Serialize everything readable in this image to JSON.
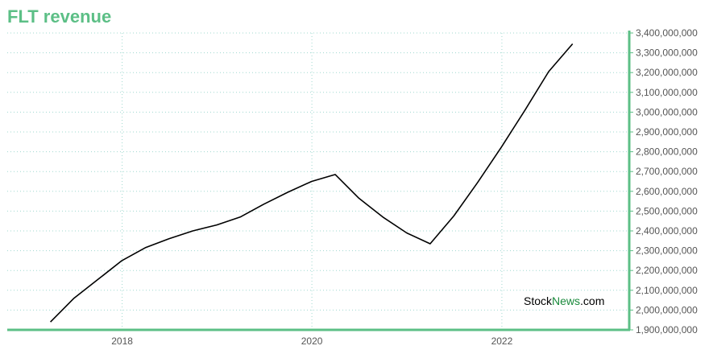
{
  "chart_data": {
    "type": "line",
    "title": "FLT revenue",
    "xlabel": "",
    "ylabel": "",
    "x": [
      "2017-03-31",
      "2017-06-30",
      "2017-09-30",
      "2017-12-31",
      "2018-03-31",
      "2018-06-30",
      "2018-09-30",
      "2018-12-31",
      "2019-03-31",
      "2019-06-30",
      "2019-09-30",
      "2019-12-31",
      "2020-03-31",
      "2020-06-30",
      "2020-09-30",
      "2020-12-31",
      "2021-03-31",
      "2021-06-30",
      "2021-09-30",
      "2021-12-31",
      "2022-03-31",
      "2022-06-30",
      "2022-09-30"
    ],
    "series": [
      {
        "values": [
          1940000000,
          2060000000,
          2155000000,
          2250000000,
          2315000000,
          2360000000,
          2400000000,
          2430000000,
          2470000000,
          2535000000,
          2595000000,
          2650000000,
          2685000000,
          2565000000,
          2470000000,
          2390000000,
          2335000000,
          2475000000,
          2645000000,
          2825000000,
          3010000000,
          3205000000,
          3345000000
        ],
        "color": "#000000"
      }
    ],
    "x_ticks": [
      "2018",
      "2020",
      "2022"
    ],
    "y_ticks": [
      "1,900,000,000",
      "2,000,000,000",
      "2,100,000,000",
      "2,200,000,000",
      "2,300,000,000",
      "2,400,000,000",
      "2,500,000,000",
      "2,600,000,000",
      "2,700,000,000",
      "2,800,000,000",
      "2,900,000,000",
      "3,000,000,000",
      "3,100,000,000",
      "3,200,000,000",
      "3,300,000,000",
      "3,400,000,000"
    ],
    "ylim": [
      1900000000,
      3400000000
    ],
    "xlim": [
      "2016-10-16",
      "2023-05-06"
    ],
    "grid": true,
    "legend": "none",
    "y_axis_side": "right",
    "axis_color": "#5cbf86",
    "grid_color": "#9fd8cf"
  },
  "watermark": {
    "part1": "Stock",
    "part2": "News",
    "part3": ".com"
  }
}
